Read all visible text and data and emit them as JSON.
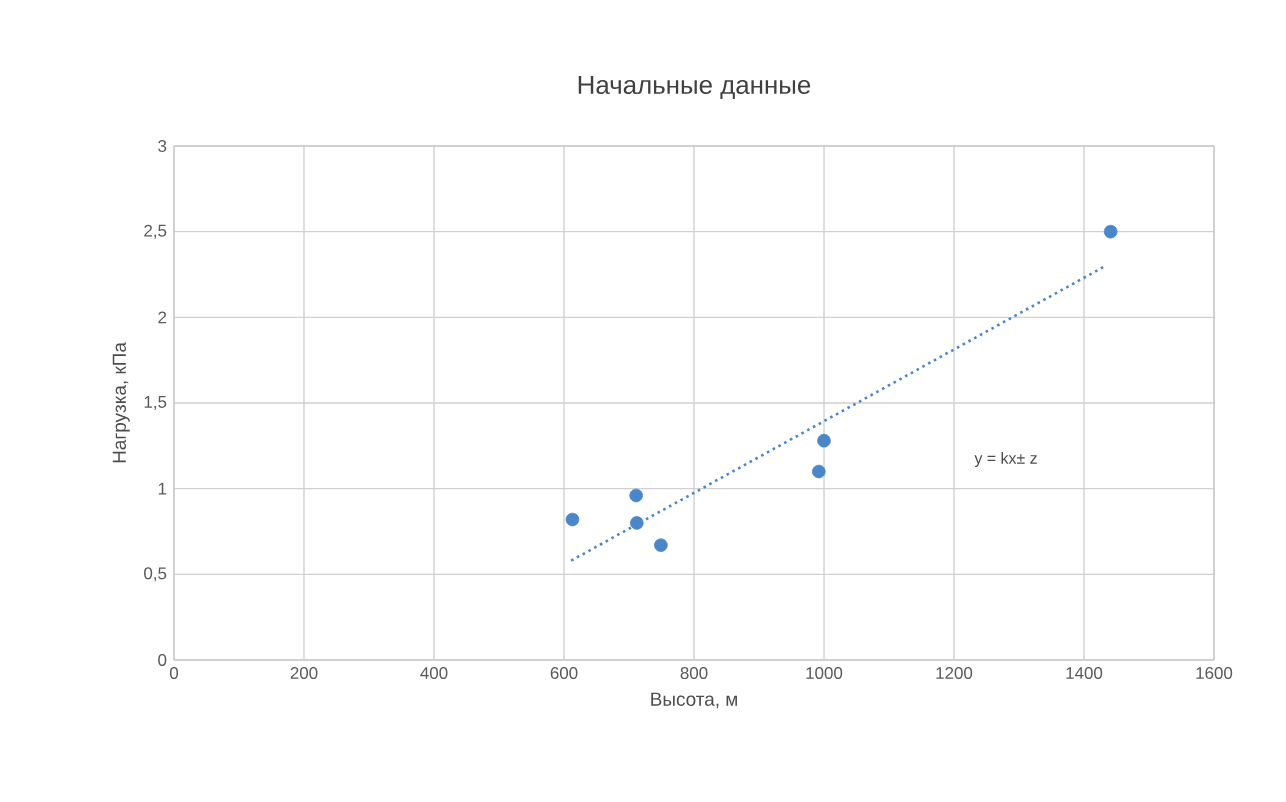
{
  "chart_data": {
    "type": "scatter",
    "title": "Начальные данные",
    "xlabel": "Высота, м",
    "ylabel": "Нагрузка, кПа",
    "xlim": [
      0,
      1600
    ],
    "ylim": [
      0,
      3
    ],
    "xticks": [
      0,
      200,
      400,
      600,
      800,
      1000,
      1200,
      1400,
      1600
    ],
    "yticks": [
      0,
      {
        "value": 0.5,
        "label": "0,5"
      },
      1,
      {
        "value": 1.5,
        "label": "1,5"
      },
      2,
      {
        "value": 2.5,
        "label": "2,5"
      },
      3
    ],
    "grid": true,
    "legend": false,
    "series": [
      {
        "marker": "circle",
        "color": "#4a86c8",
        "x": [
          613,
          711,
          712,
          749,
          992,
          1000,
          1441
        ],
        "values": [
          0.82,
          0.96,
          0.8,
          0.67,
          1.1,
          1.28,
          2.5
        ]
      },
      {
        "type": "line",
        "line_style": "dotted",
        "marker": "none",
        "color": "#4a86c8",
        "x": [
          611,
          1433
        ],
        "values": [
          0.58,
          2.3
        ]
      }
    ],
    "annotations": [
      "y = kx± z"
    ]
  }
}
